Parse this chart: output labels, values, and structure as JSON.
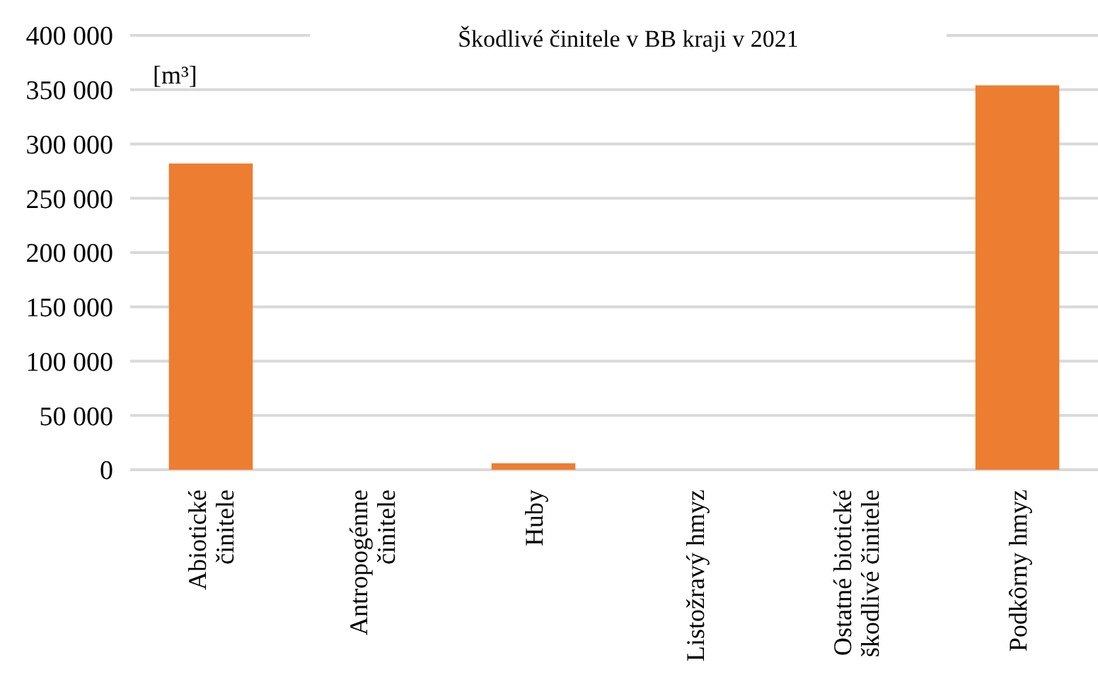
{
  "chart_data": {
    "type": "bar",
    "title": "Škodlivé činitele v BB kraji v 2021",
    "ylabel": "[m³]",
    "categories": [
      "Abiotické činitele",
      "Antropogénne činitele",
      "Huby",
      "Listožravý hmyz",
      "Ostatné biotické škodlivé činitele",
      "Podkôrny hmyz"
    ],
    "values": [
      282000,
      0,
      6000,
      0,
      0,
      354000
    ],
    "color": "#ed7d31",
    "ylim": [
      0,
      400000
    ],
    "yticks": [
      {
        "value": 0,
        "label": "0"
      },
      {
        "value": 50000,
        "label": "50 000"
      },
      {
        "value": 100000,
        "label": "100 000"
      },
      {
        "value": 150000,
        "label": "150 000"
      },
      {
        "value": 200000,
        "label": "200 000"
      },
      {
        "value": 250000,
        "label": "250 000"
      },
      {
        "value": 300000,
        "label": "300 000"
      },
      {
        "value": 350000,
        "label": "350 000"
      },
      {
        "value": 400000,
        "label": "400 000"
      }
    ],
    "grid": true
  }
}
